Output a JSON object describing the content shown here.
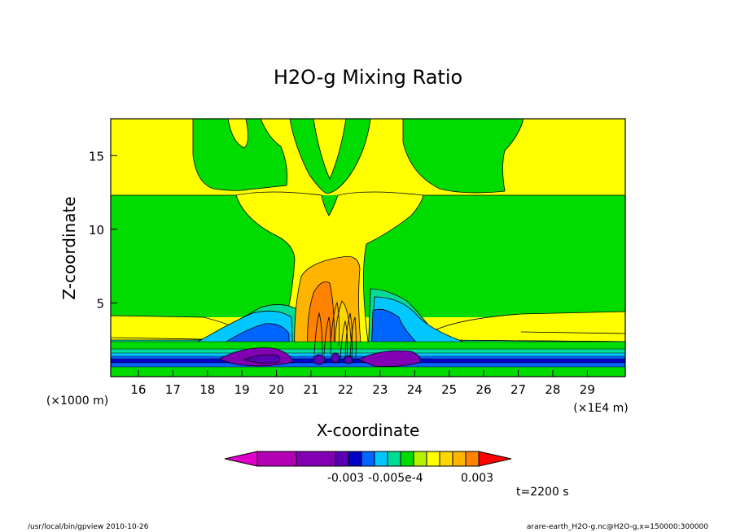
{
  "chart_data": {
    "type": "heatmap",
    "title": "H2O-g Mixing Ratio",
    "xlabel": "X-coordinate",
    "ylabel": "Z-coordinate",
    "x_ticks": [
      "16",
      "17",
      "18",
      "19",
      "20",
      "21",
      "22",
      "23",
      "24",
      "25",
      "26",
      "27",
      "28",
      "29"
    ],
    "x_unit": "(×1E4 m)",
    "y_ticks": [
      "5",
      "10",
      "15"
    ],
    "y_unit": "(×1000 m)",
    "xlim": [
      15.2,
      30.1
    ],
    "ylim": [
      0,
      17.5
    ],
    "colorbar": {
      "labels": [
        "-0.003",
        "-0.005e-4",
        "0.003"
      ],
      "colors": [
        "#e000c8",
        "#b400b4",
        "#8200b4",
        "#5a00b4",
        "#0000c8",
        "#0064ff",
        "#00c8ff",
        "#00dc96",
        "#00dc00",
        "#b4f000",
        "#ffff00",
        "#ffd700",
        "#ffb400",
        "#ff8200",
        "#ff0000"
      ]
    },
    "time_label": "t=2200 s"
  },
  "footer": {
    "left": "/usr/local/bin/gpview   2010-10-26",
    "right": "arare-earth_H2O-g.nc@H2O-g,x=150000:300000"
  }
}
